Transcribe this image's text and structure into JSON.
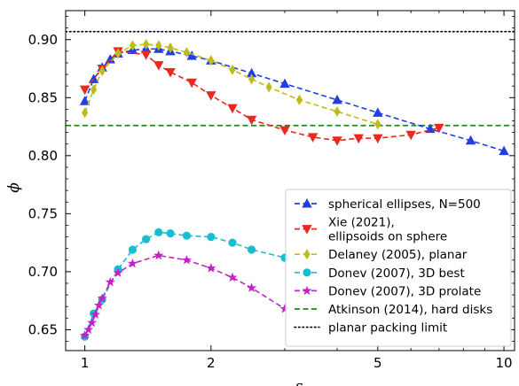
{
  "chart_data": {
    "type": "line",
    "xlabel": "ε",
    "ylabel": "ϕ",
    "xscale": "log",
    "xlim": [
      0.9,
      10.6
    ],
    "ylim": [
      0.632,
      0.925
    ],
    "xticks": [
      {
        "value": 1,
        "label": "1"
      },
      {
        "value": 2,
        "label": "2"
      },
      {
        "value": 5,
        "label": "5"
      },
      {
        "value": 10,
        "label": "10"
      }
    ],
    "yticks": [
      {
        "value": 0.65,
        "label": "0.65"
      },
      {
        "value": 0.7,
        "label": "0.70"
      },
      {
        "value": 0.75,
        "label": "0.75"
      },
      {
        "value": 0.8,
        "label": "0.80"
      },
      {
        "value": 0.85,
        "label": "0.85"
      },
      {
        "value": 0.9,
        "label": "0.90"
      }
    ],
    "grid": false,
    "legend_position": "lower-right",
    "series": [
      {
        "name": "spherical ellipses, N=500",
        "color": "#1f3fe0",
        "linestyle": "dashed",
        "marker": "triangle-up",
        "x": [
          1.0,
          1.05,
          1.1,
          1.15,
          1.2,
          1.3,
          1.4,
          1.5,
          1.6,
          1.8,
          2.0,
          2.5,
          3.0,
          4.0,
          5.0,
          6.67,
          8.33,
          10.0
        ],
        "y": [
          0.847,
          0.866,
          0.876,
          0.883,
          0.888,
          0.891,
          0.892,
          0.892,
          0.89,
          0.886,
          0.882,
          0.871,
          0.862,
          0.848,
          0.837,
          0.823,
          0.813,
          0.804
        ]
      },
      {
        "name": "Xie (2021),\nellipsoids on sphere",
        "color": "#e8291e",
        "linestyle": "dashed",
        "marker": "triangle-down",
        "x": [
          1.0,
          1.1,
          1.2,
          1.4,
          1.5,
          1.6,
          1.8,
          2.0,
          2.25,
          2.5,
          3.0,
          3.5,
          4.0,
          4.5,
          5.0,
          6.0,
          7.0
        ],
        "y": [
          0.857,
          0.875,
          0.89,
          0.887,
          0.878,
          0.872,
          0.863,
          0.852,
          0.841,
          0.831,
          0.822,
          0.816,
          0.813,
          0.815,
          0.815,
          0.818,
          0.824
        ]
      },
      {
        "name": "Delaney (2005), planar",
        "color": "#bdbd1a",
        "linestyle": "dashed",
        "marker": "thin-diamond",
        "x": [
          1.0,
          1.05,
          1.1,
          1.2,
          1.3,
          1.4,
          1.5,
          1.6,
          1.75,
          2.0,
          2.25,
          2.5,
          2.75,
          3.25,
          4.0,
          5.0
        ],
        "y": [
          0.837,
          0.857,
          0.873,
          0.888,
          0.895,
          0.896,
          0.895,
          0.893,
          0.889,
          0.882,
          0.874,
          0.866,
          0.859,
          0.848,
          0.838,
          0.827
        ]
      },
      {
        "name": "Donev (2007), 3D best",
        "color": "#17becf",
        "linestyle": "dashed",
        "marker": "circle",
        "x": [
          1.0,
          1.05,
          1.1,
          1.2,
          1.3,
          1.4,
          1.5,
          1.6,
          1.75,
          2.0,
          2.25,
          2.5,
          3.0
        ],
        "y": [
          0.644,
          0.664,
          0.676,
          0.702,
          0.719,
          0.728,
          0.734,
          0.733,
          0.731,
          0.73,
          0.725,
          0.719,
          0.712
        ]
      },
      {
        "name": "Donev (2007), 3D prolate",
        "color": "#c322c9",
        "linestyle": "dashed",
        "marker": "star",
        "x": [
          1.0,
          1.02,
          1.04,
          1.06,
          1.08,
          1.1,
          1.15,
          1.2,
          1.3,
          1.5,
          1.75,
          2.0,
          2.25,
          2.5,
          3.0
        ],
        "y": [
          0.645,
          0.65,
          0.656,
          0.663,
          0.671,
          0.677,
          0.691,
          0.699,
          0.707,
          0.714,
          0.71,
          0.703,
          0.695,
          0.686,
          0.668
        ]
      },
      {
        "name": "Atkinson (2014), hard disks",
        "color": "#1a8c1a",
        "linestyle": "dashed",
        "marker": "none",
        "y_const": 0.826
      },
      {
        "name": "planar packing limit",
        "color": "#000000",
        "linestyle": "dotted",
        "marker": "none",
        "y_const": 0.9069
      }
    ]
  }
}
